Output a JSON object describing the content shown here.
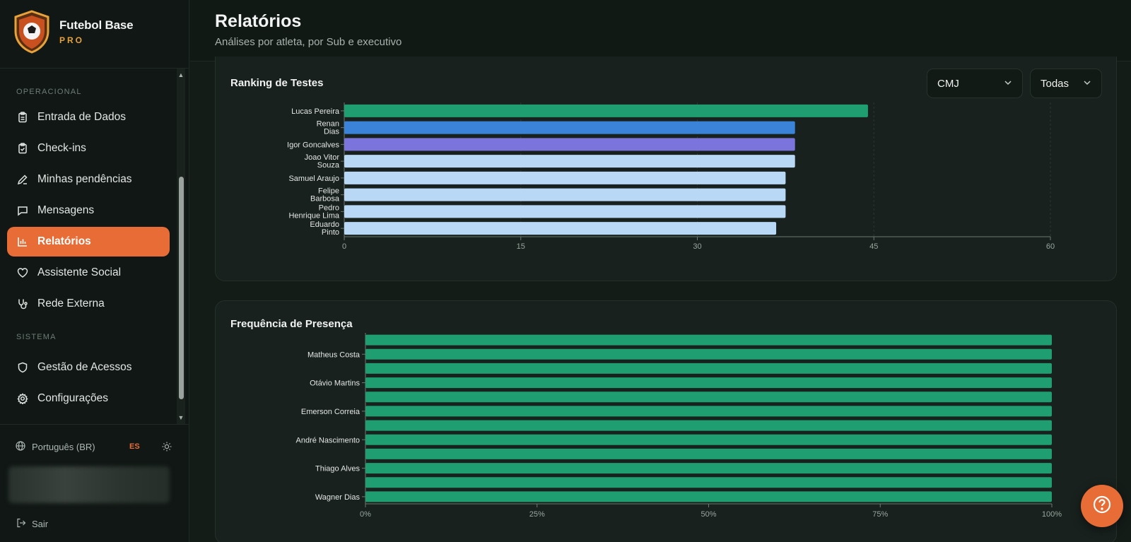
{
  "brand": {
    "name": "Futebol Base",
    "tier": "PRO"
  },
  "header": {
    "title": "Relatórios",
    "subtitle": "Análises por atleta, por Sub e executivo"
  },
  "sidebar": {
    "section_operational": "OPERACIONAL",
    "section_system": "SISTEMA",
    "items": [
      {
        "label": "Entrada de Dados",
        "icon": "clipboard-list-icon",
        "active": false
      },
      {
        "label": "Check-ins",
        "icon": "clipboard-check-icon",
        "active": false
      },
      {
        "label": "Minhas pendências",
        "icon": "pencil-icon",
        "active": false
      },
      {
        "label": "Mensagens",
        "icon": "message-icon",
        "active": false
      },
      {
        "label": "Relatórios",
        "icon": "bar-chart-icon",
        "active": true
      },
      {
        "label": "Assistente Social",
        "icon": "heart-icon",
        "active": false
      },
      {
        "label": "Rede Externa",
        "icon": "stethoscope-icon",
        "active": false
      },
      {
        "label": "Gestão de Acessos",
        "icon": "shield-icon",
        "active": false
      },
      {
        "label": "Configurações",
        "icon": "gear-icon",
        "active": false
      }
    ],
    "language": "Português (BR)",
    "alt_language": "ES",
    "logout": "Sair"
  },
  "colors": {
    "accent": "#e86c36",
    "brand_gold": "#e8a23a",
    "bar_first": "#1f9e72",
    "bar_second": "#3b82d9",
    "bar_third": "#7b74dc",
    "bar_rest": "#b9d8f5",
    "presence_bar": "#1f9e72"
  },
  "ranking": {
    "title": "Ranking de Testes",
    "test_select": "CMJ",
    "group_select": "Todas"
  },
  "presence": {
    "title": "Frequência de Presença"
  },
  "chart_data": [
    {
      "type": "bar",
      "orientation": "horizontal",
      "title": "Ranking de Testes",
      "categories": [
        "Lucas Pereira",
        "Renan Dias",
        "Igor Goncalves",
        "Joao Vitor Souza",
        "Samuel Araujo",
        "Felipe Barbosa",
        "Pedro Henrique Lima",
        "Eduardo Pinto"
      ],
      "category_lines": [
        [
          "Lucas Pereira"
        ],
        [
          "Renan",
          "Dias"
        ],
        [
          "Igor Goncalves"
        ],
        [
          "Joao Vitor",
          "Souza"
        ],
        [
          "Samuel Araujo"
        ],
        [
          "Felipe",
          "Barbosa"
        ],
        [
          "Pedro",
          "Henrique Lima"
        ],
        [
          "Eduardo",
          "Pinto"
        ]
      ],
      "values": [
        44.5,
        38.3,
        38.3,
        38.3,
        37.5,
        37.5,
        37.5,
        36.7
      ],
      "xlim": [
        0,
        60
      ],
      "xticks": [
        "0",
        "15",
        "30",
        "45",
        "60"
      ],
      "grid": true
    },
    {
      "type": "bar",
      "orientation": "horizontal",
      "title": "Frequência de Presença",
      "labeled_categories": [
        "Matheus Costa",
        "Otávio Martins",
        "Emerson Correia",
        "André Nascimento",
        "Thiago Alves",
        "Wagner Dias"
      ],
      "bar_count": 12,
      "values": [
        100,
        100,
        100,
        100,
        100,
        100,
        100,
        100,
        100,
        100,
        100,
        100
      ],
      "xlim": [
        0,
        100
      ],
      "xticks": [
        "0%",
        "25%",
        "50%",
        "75%",
        "100%"
      ],
      "grid": false
    }
  ]
}
